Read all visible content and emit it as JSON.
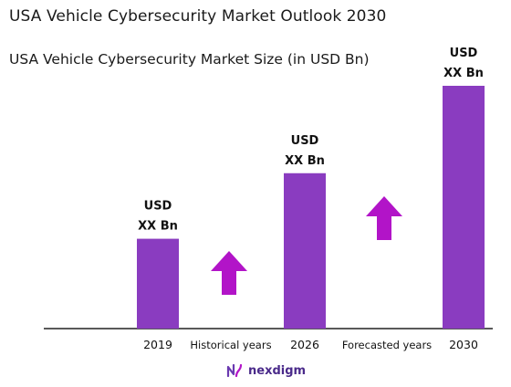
{
  "header": {
    "title": "USA Vehicle Cybersecurity Market Outlook 2030",
    "subtitle": "USA Vehicle Cybersecurity Market Size (in USD Bn)"
  },
  "chart_data": {
    "type": "bar",
    "categories": [
      "2019",
      "2026",
      "2030"
    ],
    "values": [
      0.37,
      0.64,
      1.0
    ],
    "value_labels": [
      [
        "USD",
        "XX Bn"
      ],
      [
        "USD",
        "XX Bn"
      ],
      [
        "USD",
        "XX Bn"
      ]
    ],
    "period_labels": [
      "Historical years",
      "Forecasted years"
    ],
    "colors": {
      "bar": "#8a3cc0",
      "arrow": "#b214c8",
      "axis": "#222222"
    },
    "ylim": [
      0,
      1
    ]
  },
  "footer": {
    "brand": "nexdigm"
  },
  "icons": {
    "logo": "nexdigm-logo-icon",
    "arrow": "up-arrow-icon"
  }
}
